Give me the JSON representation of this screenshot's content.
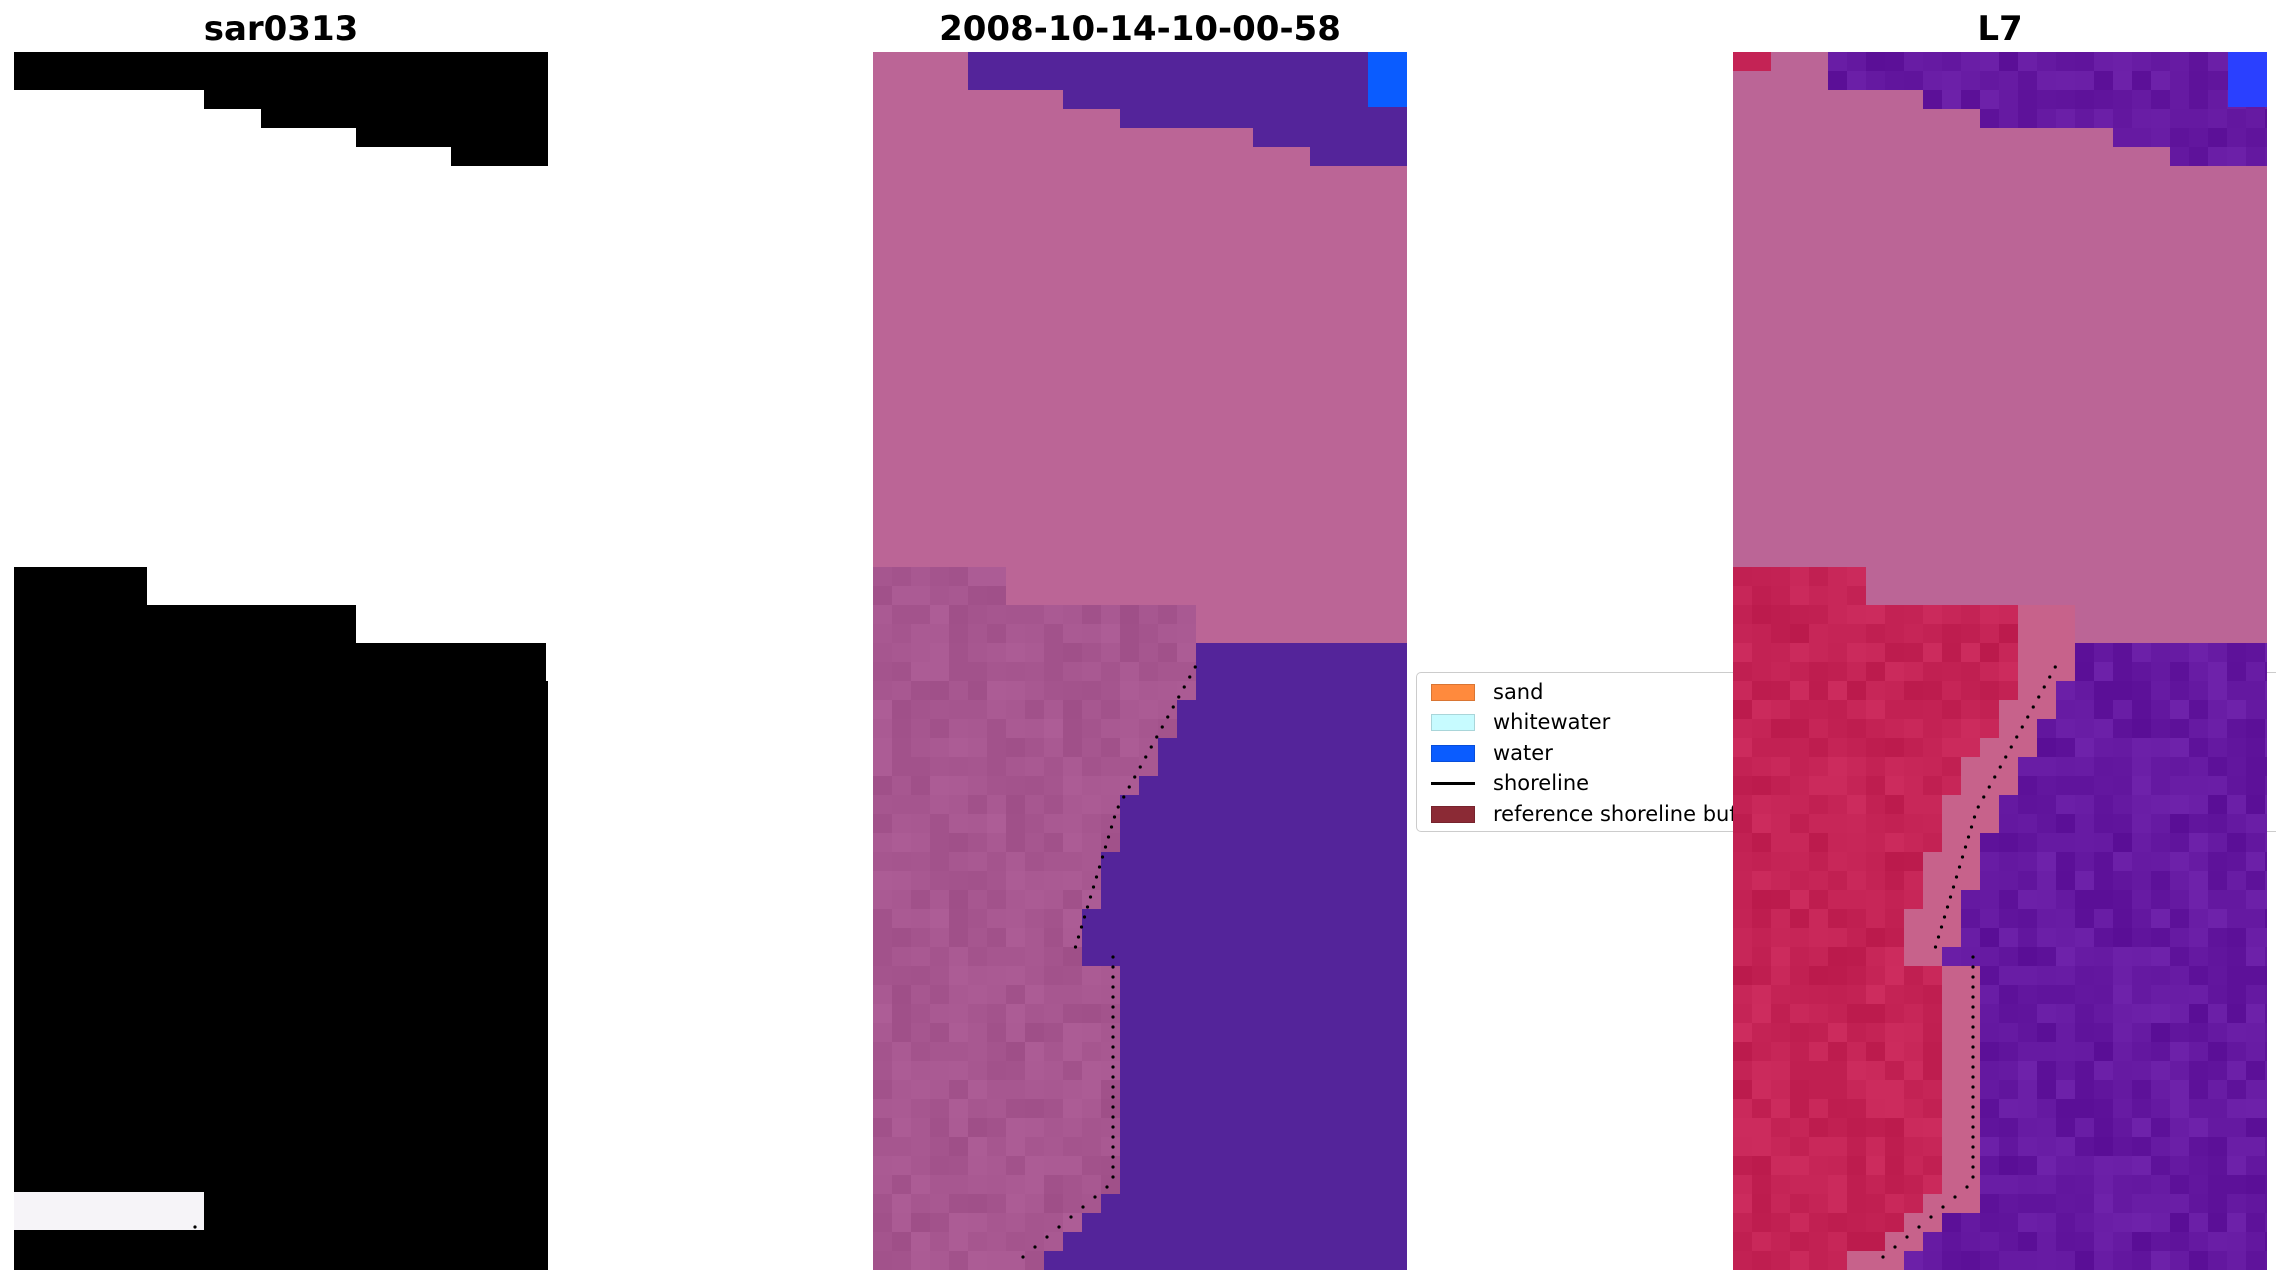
{
  "panels": [
    {
      "title": "sar0313",
      "style": "rgb"
    },
    {
      "title": "2008-10-14-10-00-58",
      "style": "classified"
    },
    {
      "title": "L7",
      "style": "index"
    }
  ],
  "legend": {
    "items": [
      {
        "label": "sand",
        "color": "#ff8a3d",
        "kind": "patch"
      },
      {
        "label": "whitewater",
        "color": "#c7fbff",
        "kind": "patch"
      },
      {
        "label": "water",
        "color": "#0a5cff",
        "kind": "patch"
      },
      {
        "label": "shoreline",
        "color": "#000000",
        "kind": "line"
      },
      {
        "label": "reference shoreline buff",
        "color": "#8b2a35",
        "kind": "patch"
      }
    ]
  },
  "colors": {
    "rgb_light": "#dfe6f5",
    "rgb_water": "#98b2da",
    "classified_land": "#bb6596",
    "classified_water": "#54249a",
    "classified_beach": "#a6568f",
    "index_land": "#bb6596",
    "index_sand": "#c42355",
    "index_water": "#6418a0",
    "shoreline_dots": "#000000"
  }
}
